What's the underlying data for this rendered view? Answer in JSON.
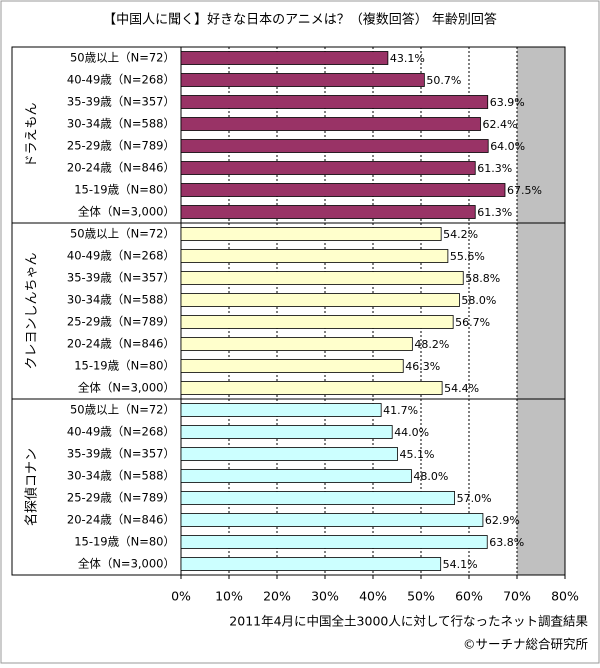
{
  "chart_data": {
    "type": "bar",
    "orientation": "horizontal",
    "title": "【中国人に聞く】好きな日本のアニメは？（複数回答） 年齢別回答",
    "categories": [
      "50歳以上（N=72）",
      "40-49歳（N=268）",
      "35-39歳（N=357）",
      "30-34歳（N=588）",
      "25-29歳（N=789）",
      "20-24歳（N=846）",
      "15-19歳（N=80）",
      "全体（N=3,000）"
    ],
    "series": [
      {
        "name": "ドラえもん",
        "color": "#993366",
        "values": [
          43.1,
          50.7,
          63.9,
          62.4,
          64.0,
          61.3,
          67.5,
          61.3
        ],
        "value_labels": [
          "43.1%",
          "50.7%",
          "63.9%",
          "62.4%",
          "64.0%",
          "61.3%",
          "67.5%",
          "61.3%"
        ]
      },
      {
        "name": "クレヨンしんちゃん",
        "color": "#ffffcc",
        "values": [
          54.2,
          55.6,
          58.8,
          58.0,
          56.7,
          48.2,
          46.3,
          54.4
        ],
        "value_labels": [
          "54.2%",
          "55.6%",
          "58.8%",
          "58.0%",
          "56.7%",
          "48.2%",
          "46.3%",
          "54.4%"
        ]
      },
      {
        "name": "名探偵コナン",
        "color": "#ccffff",
        "values": [
          41.7,
          44.0,
          45.1,
          48.0,
          57.0,
          62.9,
          63.8,
          54.1
        ],
        "value_labels": [
          "41.7%",
          "44.0%",
          "45.1%",
          "48.0%",
          "57.0%",
          "62.9%",
          "63.8%",
          "54.1%"
        ]
      }
    ],
    "xlim": [
      0,
      80
    ],
    "xticks": [
      {
        "value": 0,
        "label": "0%"
      },
      {
        "value": 10,
        "label": "10%"
      },
      {
        "value": 20,
        "label": "20%"
      },
      {
        "value": 30,
        "label": "30%"
      },
      {
        "value": 40,
        "label": "40%"
      },
      {
        "value": 50,
        "label": "50%"
      },
      {
        "value": 60,
        "label": "60%"
      },
      {
        "value": 70,
        "label": "70%"
      },
      {
        "value": 80,
        "label": "80%"
      }
    ],
    "grid": true,
    "notes": [
      "2011年4月に中国全土3000人に対して行なったネット調査結果",
      "©サーチナ総合研究所"
    ]
  }
}
